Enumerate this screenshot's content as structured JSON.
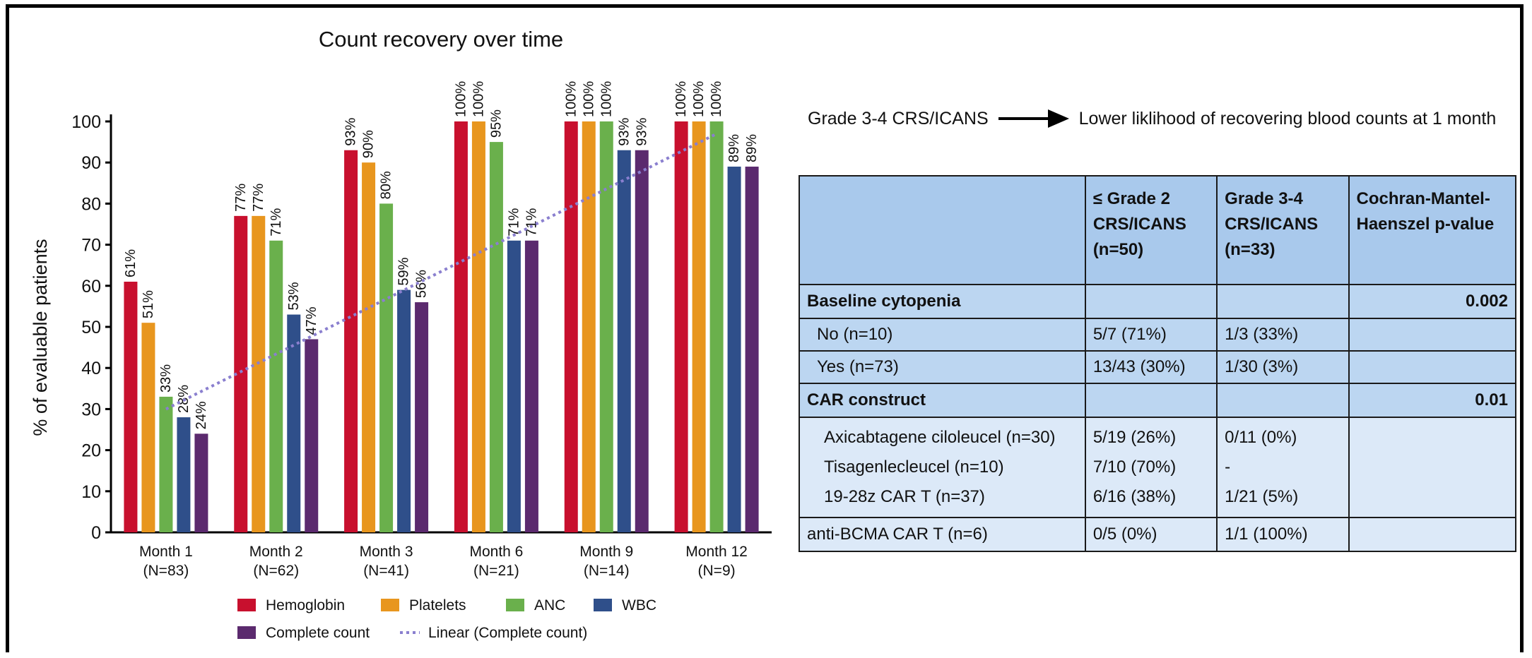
{
  "chart_data": {
    "type": "bar",
    "title": "Count recovery over time",
    "ylabel": "% of evaluable patients",
    "ylim": [
      0,
      100
    ],
    "yticks": [
      0,
      10,
      20,
      30,
      40,
      50,
      60,
      70,
      80,
      90,
      100
    ],
    "categories": [
      {
        "label": "Month 1",
        "n": "(N=83)"
      },
      {
        "label": "Month 2",
        "n": "(N=62)"
      },
      {
        "label": "Month 3",
        "n": "(N=41)"
      },
      {
        "label": "Month 6",
        "n": "(N=21)"
      },
      {
        "label": "Month 9",
        "n": "(N=14)"
      },
      {
        "label": "Month 12",
        "n": "(N=9)"
      }
    ],
    "series": [
      {
        "name": "Hemoglobin",
        "color": "#c8102e",
        "values": [
          61,
          77,
          93,
          100,
          100,
          100
        ]
      },
      {
        "name": "Platelets",
        "color": "#e8961e",
        "values": [
          51,
          77,
          90,
          100,
          100,
          100
        ]
      },
      {
        "name": "ANC",
        "color": "#6ab04c",
        "values": [
          33,
          71,
          80,
          95,
          100,
          100
        ]
      },
      {
        "name": "WBC",
        "color": "#2f4f8a",
        "values": [
          28,
          53,
          59,
          71,
          93,
          89
        ]
      },
      {
        "name": "Complete count",
        "color": "#5b2a6e",
        "values": [
          24,
          47,
          56,
          71,
          93,
          89
        ]
      }
    ],
    "trendline": {
      "name": "Linear (Complete count)",
      "color": "#8a7fcf",
      "start": [
        0,
        30
      ],
      "end": [
        5,
        97
      ]
    },
    "legend_position": "bottom",
    "grid": false
  },
  "flow": {
    "left": "Grade 3-4 CRS/ICANS",
    "right": "Lower liklihood of recovering blood counts at 1 month"
  },
  "table": {
    "headers": [
      [
        ""
      ],
      [
        "≤ Grade 2",
        "CRS/ICANS",
        "(n=50)"
      ],
      [
        "Grade 3-4",
        "CRS/ICANS",
        "(n=33)"
      ],
      [
        "Cochran-Mantel-",
        "Haenszel p-value"
      ]
    ],
    "baseline": {
      "label": "Baseline cytopenia",
      "p": "0.002"
    },
    "baseline_rows": [
      {
        "label": "No (n=10)",
        "g2": "5/7 (71%)",
        "g34": "1/3 (33%)"
      },
      {
        "label": "Yes (n=73)",
        "g2": "13/43 (30%)",
        "g34": "1/30 (3%)"
      }
    ],
    "construct": {
      "label": "CAR construct",
      "p": "0.01"
    },
    "construct_rows": [
      {
        "label": "Axicabtagene ciloleucel (n=30)",
        "g2": "5/19 (26%)",
        "g34": "0/11 (0%)"
      },
      {
        "label": "Tisagenlecleucel (n=10)",
        "g2": "7/10 (70%)",
        "g34": "-"
      },
      {
        "label": "19-28z CAR T (n=37)",
        "g2": "6/16 (38%)",
        "g34": "1/21 (5%)"
      }
    ],
    "last_row": {
      "label": "anti-BCMA CAR T (n=6)",
      "g2": "0/5 (0%)",
      "g34": "1/1 (100%)"
    }
  }
}
